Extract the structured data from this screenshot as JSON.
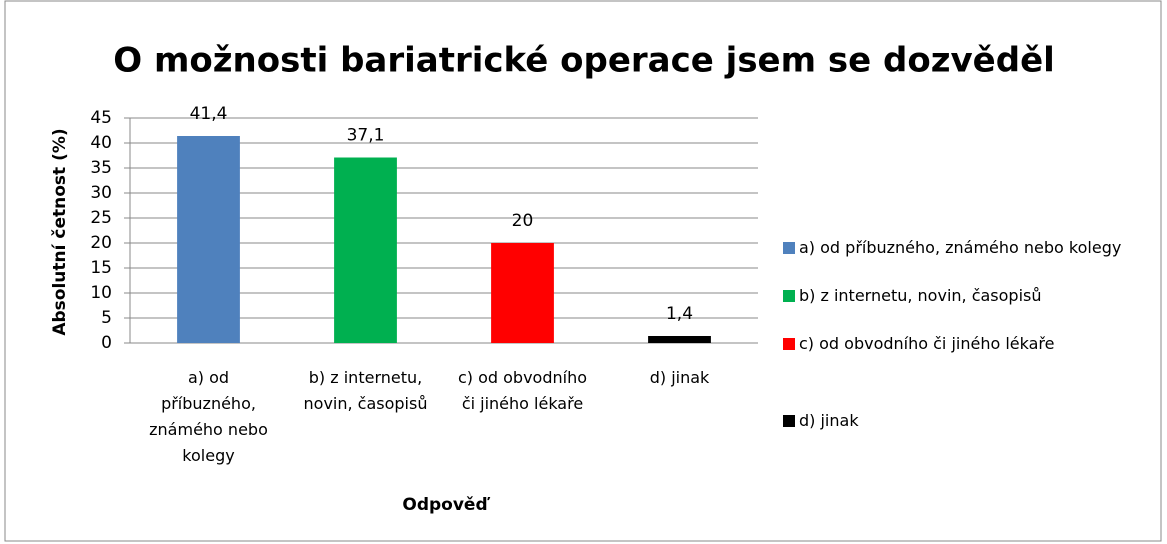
{
  "chart_data": {
    "type": "bar",
    "title": "O možnosti bariatrické operace jsem se dozvěděl",
    "xlabel": "Odpověď",
    "ylabel": "Absolutní četnost (%)",
    "categories": [
      "a) od příbuzného, známého nebo kolegy",
      "b) z internetu, novin, časopisů",
      "c) od obvodního či jiného lékaře",
      "d) jinak"
    ],
    "values": [
      41.4,
      37.1,
      20,
      1.4
    ],
    "value_labels": [
      "41,4",
      "37,1",
      "20",
      "1,4"
    ],
    "colors": [
      "#4f81bd",
      "#00b050",
      "#ff0000",
      "#000000"
    ],
    "ylim": [
      0,
      45
    ],
    "yticks": [
      0,
      5,
      10,
      15,
      20,
      25,
      30,
      35,
      40,
      45
    ],
    "grid": true,
    "legend": "right"
  }
}
